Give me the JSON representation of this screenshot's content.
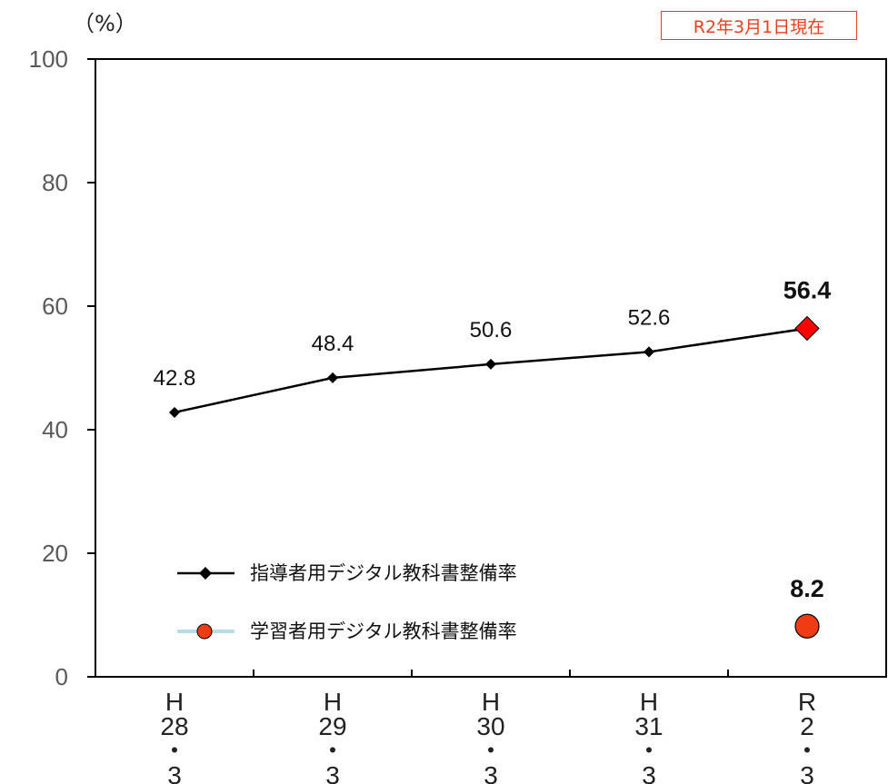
{
  "badge": {
    "text": "R2年3月1日現在"
  },
  "chart_data": {
    "type": "line",
    "unit_label": "（%）",
    "categories": [
      [
        "H",
        "28",
        "・",
        "3"
      ],
      [
        "H",
        "29",
        "・",
        "3"
      ],
      [
        "H",
        "30",
        "・",
        "3"
      ],
      [
        "H",
        "31",
        "・",
        "3"
      ],
      [
        "R",
        "2",
        "・",
        "3"
      ]
    ],
    "ylim": [
      0,
      100
    ],
    "yticks": [
      0,
      20,
      40,
      60,
      80,
      100
    ],
    "grid": false,
    "legend_position": "bottom-left",
    "series": [
      {
        "name": "指導者用デジタル教科書整備率",
        "values": [
          42.8,
          48.4,
          50.6,
          52.6,
          56.4
        ],
        "labels": [
          "42.8",
          "48.4",
          "50.6",
          "52.6",
          "56.4"
        ],
        "color": "#000000",
        "highlight_color": "#ff0000",
        "marker": "diamond"
      },
      {
        "name": "学習者用デジタル教科書整備率",
        "values": [
          null,
          null,
          null,
          null,
          8.2
        ],
        "labels": [
          "",
          "",
          "",
          "",
          "8.2"
        ],
        "color": "#f03c14",
        "line_color": "#b7dde8",
        "marker": "circle"
      }
    ]
  }
}
